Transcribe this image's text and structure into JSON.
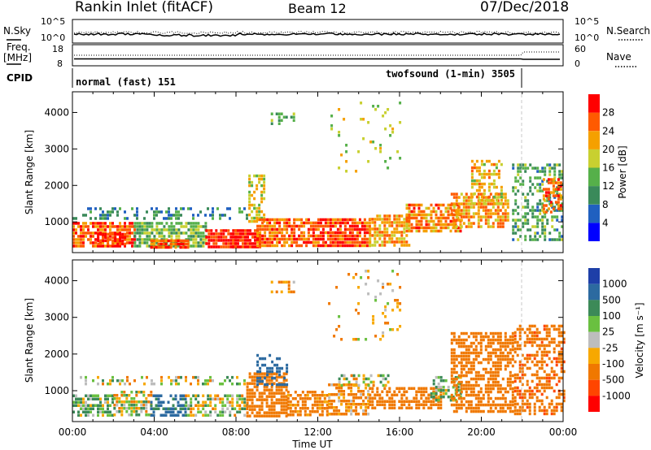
{
  "header": {
    "station": "Rankin Inlet (fitACF)",
    "beam": "Beam 12",
    "date": "07/Dec/2018"
  },
  "top_strips": {
    "nsky_label": "N.Sky",
    "nsky_ticks": [
      "10^5",
      "10^0"
    ],
    "nsearch_label": "N.Search",
    "nsearch_ticks": [
      "10^5",
      "10^0"
    ],
    "freq_label_1": "Freq.",
    "freq_label_2": "[MHz]",
    "freq_ticks": [
      "18",
      "8"
    ],
    "nave_label": "Nave",
    "nave_ticks": [
      "60",
      "0"
    ],
    "cpid_label": "CPID",
    "cpid_segments": [
      {
        "text": "normal (fast) 151",
        "start_hour": 0
      },
      {
        "text": "twofsound (1-min) 3505",
        "start_hour": 21.9
      }
    ]
  },
  "colors": {
    "power_scale": [
      "#0000ff",
      "#2060c0",
      "#3a8a5a",
      "#56b04a",
      "#c8d030",
      "#f5a000",
      "#ff5a00",
      "#ff0000"
    ],
    "velocity_scale": [
      "#1e3fa8",
      "#2c6aa0",
      "#3c8a58",
      "#6ac040",
      "#bdbdbd",
      "#f7a800",
      "#f07800",
      "#ff4500",
      "#ff0000"
    ]
  },
  "chart_data": [
    {
      "type": "heatmap",
      "panel": "power",
      "xlabel": "",
      "ylabel": "Slant Range [km]",
      "xlim": [
        0,
        24
      ],
      "ylim": [
        180,
        4500
      ],
      "yticks": [
        "1000",
        "2000",
        "3000",
        "4000"
      ],
      "colorbar": {
        "label": "Power [dB]",
        "range": [
          0,
          32
        ],
        "ticks": [
          "4",
          "8",
          "12",
          "16",
          "20",
          "24",
          "28"
        ]
      },
      "regions": [
        {
          "t": [
            0.0,
            3.0
          ],
          "r": [
            300,
            1000
          ],
          "value": 26,
          "density": 0.8
        },
        {
          "t": [
            1.2,
            2.6
          ],
          "r": [
            400,
            700
          ],
          "value": 30,
          "density": 0.85
        },
        {
          "t": [
            3.0,
            6.5
          ],
          "r": [
            300,
            1000
          ],
          "value": 14,
          "density": 0.75
        },
        {
          "t": [
            3.8,
            5.6
          ],
          "r": [
            300,
            520
          ],
          "value": 27,
          "density": 0.85
        },
        {
          "t": [
            0.0,
            8.5
          ],
          "r": [
            1100,
            1400
          ],
          "value": 9,
          "density": 0.35
        },
        {
          "t": [
            6.5,
            8.0
          ],
          "r": [
            350,
            800
          ],
          "value": 29,
          "density": 0.8
        },
        {
          "t": [
            7.8,
            9.2
          ],
          "r": [
            300,
            800
          ],
          "value": 29,
          "density": 0.85
        },
        {
          "t": [
            8.6,
            9.4
          ],
          "r": [
            1000,
            2300
          ],
          "value": 19,
          "density": 0.55
        },
        {
          "t": [
            9.0,
            11.5
          ],
          "r": [
            300,
            1100
          ],
          "value": 25,
          "density": 0.8
        },
        {
          "t": [
            11.5,
            14.5
          ],
          "r": [
            300,
            1100
          ],
          "value": 27,
          "density": 0.85
        },
        {
          "t": [
            14.5,
            16.5
          ],
          "r": [
            350,
            1200
          ],
          "value": 22,
          "density": 0.7
        },
        {
          "t": [
            16.3,
            19.0
          ],
          "r": [
            700,
            1500
          ],
          "value": 24,
          "density": 0.7
        },
        {
          "t": [
            18.5,
            21.3
          ],
          "r": [
            900,
            1800
          ],
          "value": 23,
          "density": 0.65
        },
        {
          "t": [
            19.5,
            21.0
          ],
          "r": [
            1500,
            2700
          ],
          "value": 20,
          "density": 0.45
        },
        {
          "t": [
            21.5,
            24.0
          ],
          "r": [
            500,
            2600
          ],
          "value": 12,
          "density": 0.45
        },
        {
          "t": [
            23.0,
            23.9
          ],
          "r": [
            1300,
            2200
          ],
          "value": 26,
          "density": 0.55
        },
        {
          "t": [
            9.7,
            10.8
          ],
          "r": [
            3700,
            4000
          ],
          "value": 14,
          "density": 0.4
        },
        {
          "t": [
            12.5,
            16.0
          ],
          "r": [
            2400,
            4300
          ],
          "value": 17,
          "density": 0.08
        }
      ]
    },
    {
      "type": "heatmap",
      "panel": "velocity",
      "xlabel": "Time UT",
      "ylabel": "Slant Range [km]",
      "xlim": [
        0,
        24
      ],
      "ylim": [
        180,
        4500
      ],
      "xticks": [
        "00:00",
        "04:00",
        "08:00",
        "12:00",
        "16:00",
        "20:00",
        "00:00"
      ],
      "yticks": [
        "1000",
        "2000",
        "3000",
        "4000"
      ],
      "colorbar": {
        "label": "Velocity [m s⁻¹]",
        "tick_labels": [
          "1000",
          "500",
          "100",
          "25",
          "-25",
          "-100",
          "-500",
          "-1000"
        ]
      },
      "regions": [
        {
          "t": [
            0.0,
            2.0
          ],
          "r": [
            300,
            900
          ],
          "value": 80,
          "density": 0.7
        },
        {
          "t": [
            2.0,
            3.8
          ],
          "r": [
            300,
            1000
          ],
          "value": 10,
          "density": 0.55
        },
        {
          "t": [
            3.8,
            5.5
          ],
          "r": [
            350,
            900
          ],
          "value": 600,
          "density": 0.6
        },
        {
          "t": [
            5.5,
            8.5
          ],
          "r": [
            300,
            900
          ],
          "value": 20,
          "density": 0.6
        },
        {
          "t": [
            0.0,
            8.5
          ],
          "r": [
            1150,
            1400
          ],
          "value": 0,
          "density": 0.35
        },
        {
          "t": [
            8.5,
            10.5
          ],
          "r": [
            300,
            1500
          ],
          "value": -300,
          "density": 0.75
        },
        {
          "t": [
            9.0,
            10.5
          ],
          "r": [
            1200,
            2000
          ],
          "value": 700,
          "density": 0.35
        },
        {
          "t": [
            10.5,
            12.5
          ],
          "r": [
            300,
            1000
          ],
          "value": -200,
          "density": 0.7
        },
        {
          "t": [
            12.5,
            14.5
          ],
          "r": [
            400,
            1200
          ],
          "value": -150,
          "density": 0.75
        },
        {
          "t": [
            13.0,
            15.5
          ],
          "r": [
            1150,
            1450
          ],
          "value": 5,
          "density": 0.45
        },
        {
          "t": [
            14.5,
            18.0
          ],
          "r": [
            500,
            1100
          ],
          "value": -250,
          "density": 0.7
        },
        {
          "t": [
            17.5,
            19.0
          ],
          "r": [
            700,
            1400
          ],
          "value": 80,
          "density": 0.55
        },
        {
          "t": [
            18.5,
            21.5
          ],
          "r": [
            400,
            2600
          ],
          "value": -350,
          "density": 0.65
        },
        {
          "t": [
            21.6,
            24.0
          ],
          "r": [
            400,
            2800
          ],
          "value": -400,
          "density": 0.5
        },
        {
          "t": [
            9.7,
            10.8
          ],
          "r": [
            3700,
            4000
          ],
          "value": -150,
          "density": 0.35
        },
        {
          "t": [
            12.5,
            16.0
          ],
          "r": [
            2400,
            4300
          ],
          "value": -100,
          "density": 0.07
        }
      ]
    }
  ]
}
